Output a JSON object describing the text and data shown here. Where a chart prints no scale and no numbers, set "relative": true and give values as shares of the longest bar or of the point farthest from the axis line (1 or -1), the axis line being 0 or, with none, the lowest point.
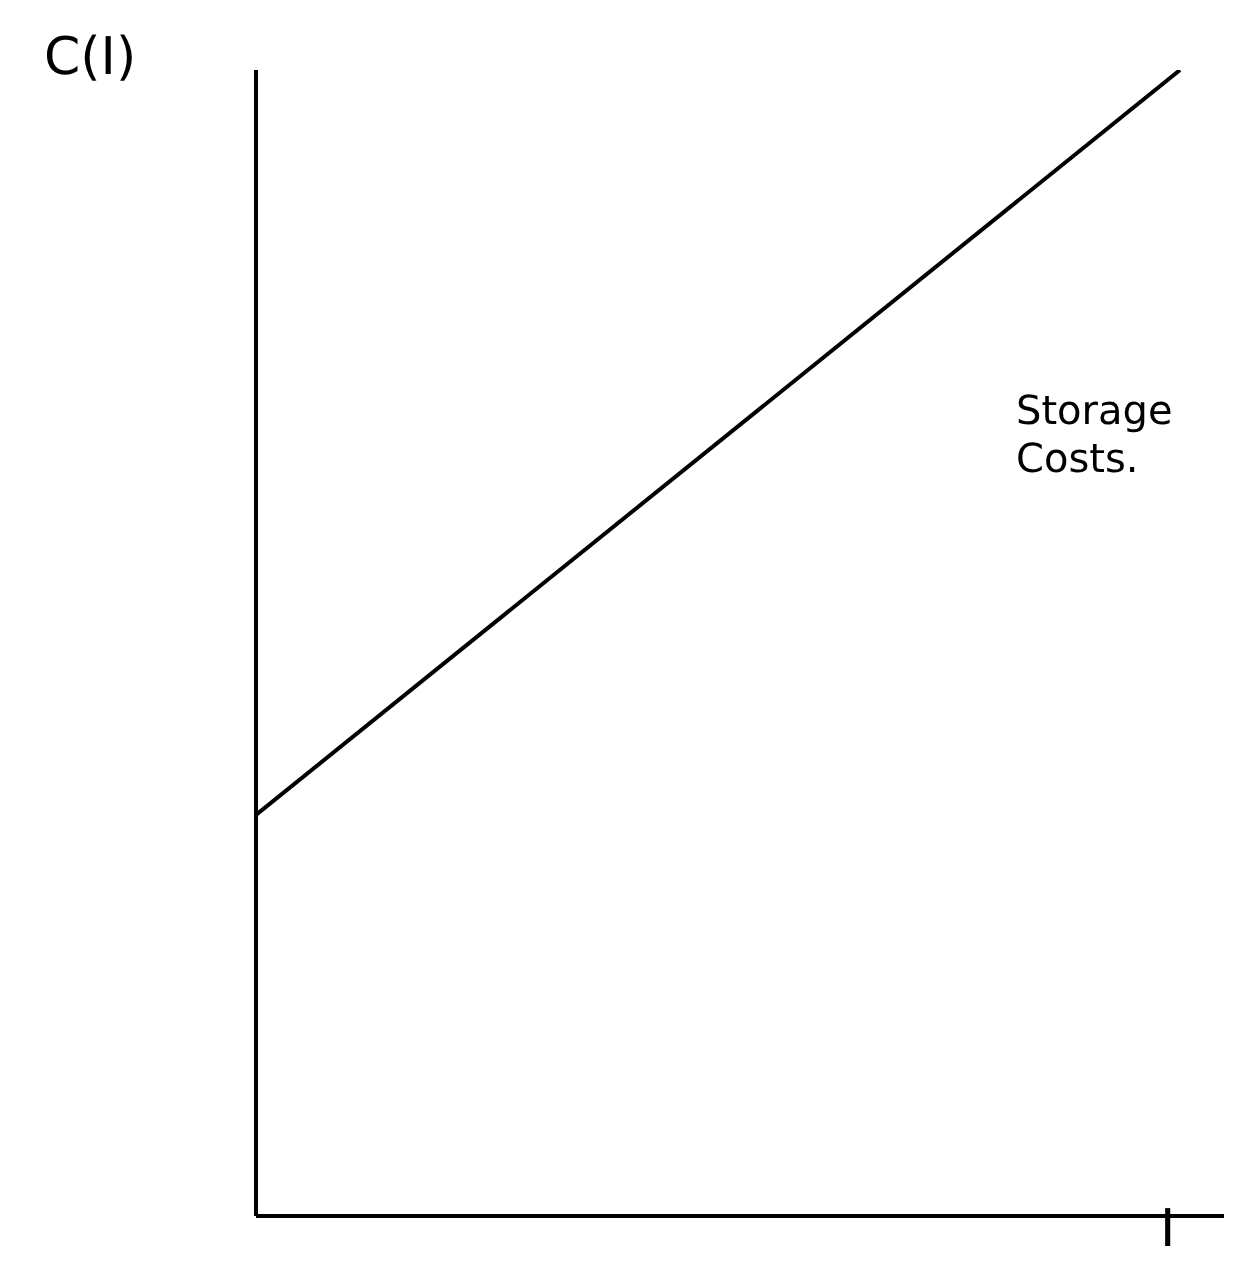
{
  "chart_data": {
    "type": "line",
    "relative": true,
    "xlabel": "I",
    "ylabel": "C(I)",
    "categories": [
      null,
      null
    ],
    "series": [
      {
        "color": "#000000",
        "values": [
          0.35,
          1
        ]
      }
    ],
    "annotations": [
      "Storage Costs."
    ],
    "grid": false,
    "marker": "none",
    "line_style": "solid"
  }
}
